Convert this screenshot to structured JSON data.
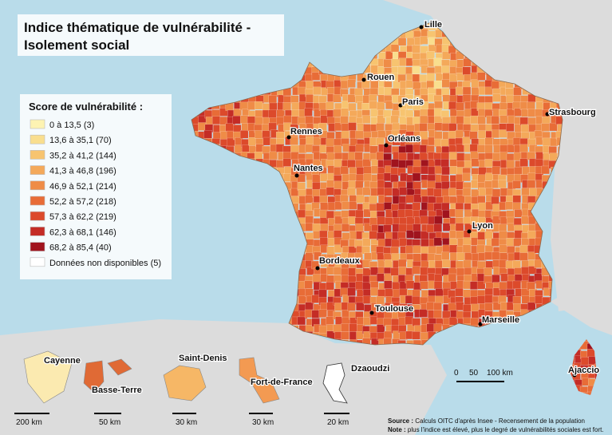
{
  "title": [
    "Indice thématique de vulnérabilité -",
    "Isolement social"
  ],
  "legend": {
    "title": "Score de vulnérabilité :",
    "items": [
      {
        "label": "0 à 13,5 (3)",
        "color": "#fdf3b2"
      },
      {
        "label": "13,6 à 35,1 (70)",
        "color": "#f9de8e"
      },
      {
        "label": "35,2 à 41,2 (144)",
        "color": "#f7c470"
      },
      {
        "label": "41,3 à 46,8 (196)",
        "color": "#f4a95a"
      },
      {
        "label": "46,9 à 52,1 (214)",
        "color": "#ef8c47"
      },
      {
        "label": "52,2 à 57,2 (218)",
        "color": "#e86c37"
      },
      {
        "label": "57,3 à 62,2 (219)",
        "color": "#dc4a2b"
      },
      {
        "label": "62,3 à 68,1 (146)",
        "color": "#c42c26"
      },
      {
        "label": "68,2 à 85,4 (40)",
        "color": "#a0141e"
      },
      {
        "label": "Données non disponibles (5)",
        "color": "#ffffff"
      }
    ]
  },
  "cities": [
    "Lille",
    "Rouen",
    "Paris",
    "Strasbourg",
    "Rennes",
    "Orléans",
    "Nantes",
    "Lyon",
    "Bordeaux",
    "Toulouse",
    "Marseille",
    "Ajaccio"
  ],
  "overseas": [
    "Cayenne",
    "Basse-Terre",
    "Saint-Denis",
    "Fort-de-France",
    "Dzaoudzi"
  ],
  "overseas_scales": [
    "200 km",
    "50 km",
    "30 km",
    "30 km",
    "20 km"
  ],
  "main_scale": [
    "0",
    "50",
    "100 km"
  ],
  "source": {
    "label": "Source :",
    "text": "Calculs OITC d'après Insee - Recensement de la population"
  },
  "note": {
    "label": "Note :",
    "text": "plus l'indice est élevé, plus le degré de vulnérabilités sociales est fort."
  }
}
